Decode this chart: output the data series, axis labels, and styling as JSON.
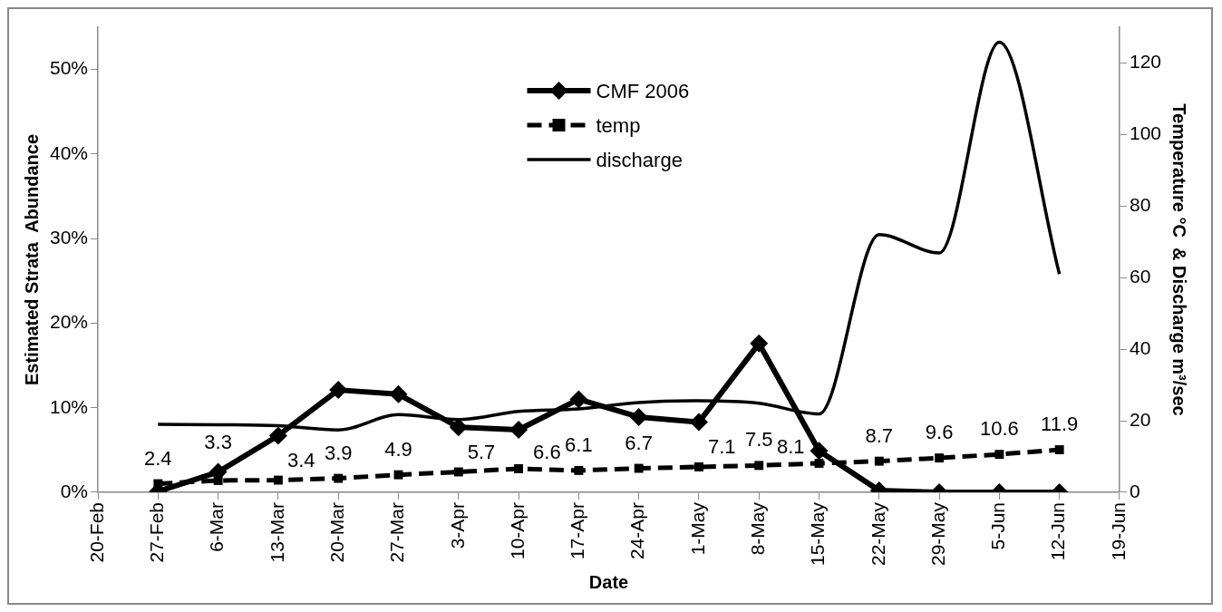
{
  "chart_data": {
    "type": "line",
    "xlabel": "Date",
    "ylabel": "Estimated Strata  Abundance",
    "y2label": "Temperature °C  & Discharge m³/sec",
    "x": [
      "--02-27",
      "--03-06",
      "--03-13",
      "--03-20",
      "--03-27",
      "--04-03",
      "--04-10",
      "--04-17",
      "--04-24",
      "--05-01",
      "--05-08",
      "--05-15",
      "--05-22",
      "--05-29",
      "--06-05",
      "--06-12"
    ],
    "xlim": [
      "--02-20",
      "--06-19"
    ],
    "xticks": [
      {
        "value": "--02-20",
        "label": "20-Feb"
      },
      {
        "value": "--02-27",
        "label": "27-Feb"
      },
      {
        "value": "--03-06",
        "label": "6-Mar"
      },
      {
        "value": "--03-13",
        "label": "13-Mar"
      },
      {
        "value": "--03-20",
        "label": "20-Mar"
      },
      {
        "value": "--03-27",
        "label": "27-Mar"
      },
      {
        "value": "--04-03",
        "label": "3-Apr"
      },
      {
        "value": "--04-10",
        "label": "10-Apr"
      },
      {
        "value": "--04-17",
        "label": "17-Apr"
      },
      {
        "value": "--04-24",
        "label": "24-Apr"
      },
      {
        "value": "--05-01",
        "label": "1-May"
      },
      {
        "value": "--05-08",
        "label": "8-May"
      },
      {
        "value": "--05-15",
        "label": "15-May"
      },
      {
        "value": "--05-22",
        "label": "22-May"
      },
      {
        "value": "--05-29",
        "label": "29-May"
      },
      {
        "value": "--06-05",
        "label": "5-Jun"
      },
      {
        "value": "--06-12",
        "label": "12-Jun"
      },
      {
        "value": "--06-19",
        "label": "19-Jun"
      }
    ],
    "ylim": [
      0,
      55
    ],
    "yticks": [
      {
        "value": 0,
        "label": "0%"
      },
      {
        "value": 10,
        "label": "10%"
      },
      {
        "value": 20,
        "label": "20%"
      },
      {
        "value": 30,
        "label": "30%"
      },
      {
        "value": 40,
        "label": "40%"
      },
      {
        "value": 50,
        "label": "50%"
      }
    ],
    "y2lim": [
      0,
      130
    ],
    "y2ticks": [
      0,
      20,
      40,
      60,
      80,
      100,
      120
    ],
    "grid": false,
    "legend": "top",
    "series": [
      {
        "name": "CMF 2006",
        "color": "#000000",
        "marker": "diamond",
        "line_style": "solid",
        "values": [
          0.1,
          2.4,
          6.7,
          12.1,
          11.6,
          7.7,
          7.4,
          11.0,
          8.9,
          8.3,
          17.6,
          4.9,
          0.2,
          0,
          0,
          0
        ]
      },
      {
        "name": "temp",
        "color": "#000000",
        "marker": "square",
        "line_style": "dashed",
        "axis": "y2",
        "values": [
          2.4,
          3.3,
          3.4,
          3.9,
          4.9,
          5.7,
          6.6,
          6.1,
          6.7,
          7.1,
          7.5,
          8.1,
          8.7,
          9.6,
          10.6,
          11.9
        ],
        "value_labels": [
          "2.4",
          "3.3",
          "3.4",
          "3.9",
          "4.9",
          "5.7",
          "6.6",
          "6.1",
          "6.7",
          "7.1",
          "7.5",
          "8.1",
          "8.7",
          "9.6",
          "10.6",
          "11.9"
        ]
      },
      {
        "name": "discharge",
        "color": "#000000",
        "marker": "none",
        "line_style": "solid",
        "axis": "y2",
        "values": [
          19.0,
          18.9,
          18.6,
          17.4,
          21.7,
          20.3,
          22.6,
          23.3,
          25.1,
          25.6,
          24.9,
          21.9,
          72.0,
          66.9,
          125.8,
          61.0
        ]
      }
    ]
  }
}
